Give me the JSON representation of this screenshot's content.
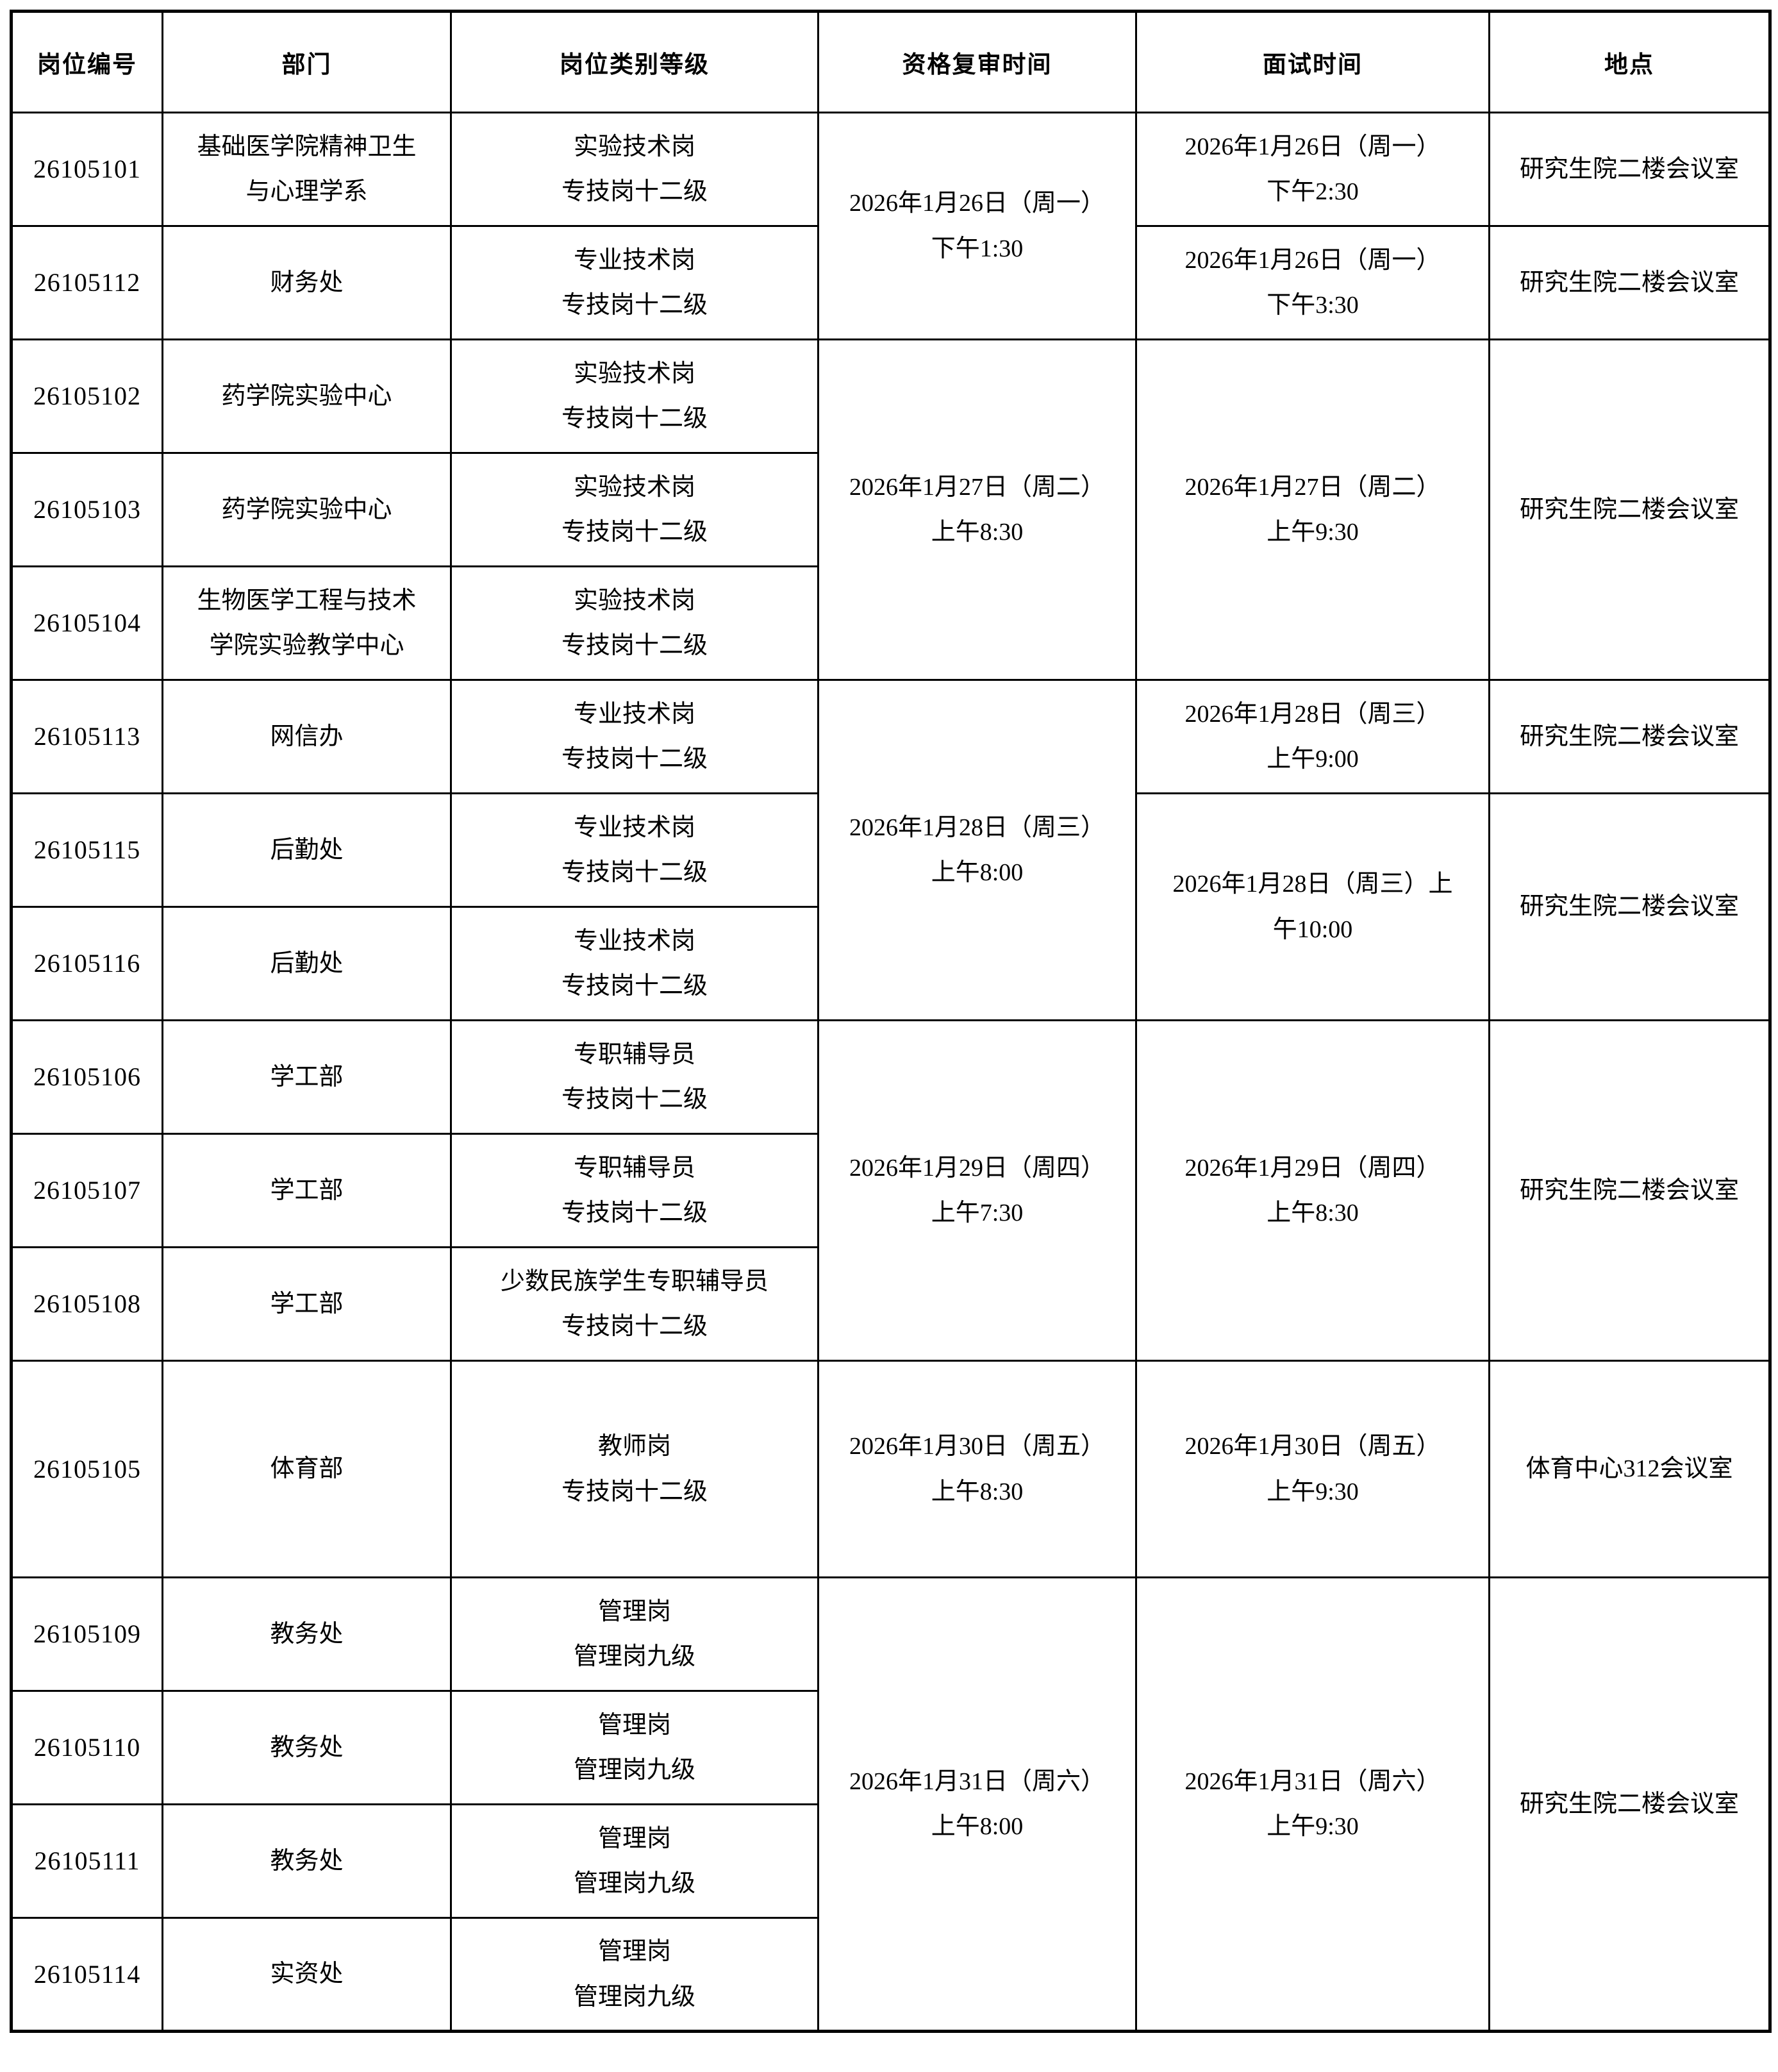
{
  "table": {
    "headers": [
      "岗位编号",
      "部门",
      "岗位类别等级",
      "资格复审时间",
      "面试时间",
      "地点"
    ],
    "rows": [
      {
        "id": "26105101",
        "dept": [
          "基础医学院精神卫生",
          "与心理学系"
        ],
        "cat": [
          "实验技术岗",
          "专技岗十二级"
        ],
        "review": [
          "2026年1月26日（周一）",
          "下午1:30"
        ],
        "interview": [
          "2026年1月26日（周一）",
          "下午2:30"
        ],
        "loc": "研究生院二楼会议室"
      },
      {
        "id": "26105112",
        "dept": [
          "财务处"
        ],
        "cat": [
          "专业技术岗",
          "专技岗十二级"
        ],
        "interview": [
          "2026年1月26日（周一）",
          "下午3:30"
        ],
        "loc": "研究生院二楼会议室"
      },
      {
        "id": "26105102",
        "dept": [
          "药学院实验中心"
        ],
        "cat": [
          "实验技术岗",
          "专技岗十二级"
        ],
        "review": [
          "2026年1月27日（周二）",
          "上午8:30"
        ],
        "interview": [
          "2026年1月27日（周二）",
          "上午9:30"
        ],
        "loc": "研究生院二楼会议室"
      },
      {
        "id": "26105103",
        "dept": [
          "药学院实验中心"
        ],
        "cat": [
          "实验技术岗",
          "专技岗十二级"
        ]
      },
      {
        "id": "26105104",
        "dept": [
          "生物医学工程与技术",
          "学院实验教学中心"
        ],
        "cat": [
          "实验技术岗",
          "专技岗十二级"
        ]
      },
      {
        "id": "26105113",
        "dept": [
          "网信办"
        ],
        "cat": [
          "专业技术岗",
          "专技岗十二级"
        ],
        "review": [
          "2026年1月28日（周三）",
          "上午8:00"
        ],
        "interview": [
          "2026年1月28日（周三）",
          "上午9:00"
        ],
        "loc": "研究生院二楼会议室"
      },
      {
        "id": "26105115",
        "dept": [
          "后勤处"
        ],
        "cat": [
          "专业技术岗",
          "专技岗十二级"
        ],
        "interview": [
          "2026年1月28日（周三）上",
          "午10:00"
        ],
        "loc": "研究生院二楼会议室"
      },
      {
        "id": "26105116",
        "dept": [
          "后勤处"
        ],
        "cat": [
          "专业技术岗",
          "专技岗十二级"
        ]
      },
      {
        "id": "26105106",
        "dept": [
          "学工部"
        ],
        "cat": [
          "专职辅导员",
          "专技岗十二级"
        ],
        "review": [
          "2026年1月29日（周四）",
          "上午7:30"
        ],
        "interview": [
          "2026年1月29日（周四）",
          "上午8:30"
        ],
        "loc": "研究生院二楼会议室"
      },
      {
        "id": "26105107",
        "dept": [
          "学工部"
        ],
        "cat": [
          "专职辅导员",
          "专技岗十二级"
        ]
      },
      {
        "id": "26105108",
        "dept": [
          "学工部"
        ],
        "cat": [
          "少数民族学生专职辅导员",
          "专技岗十二级"
        ]
      },
      {
        "id": "26105105",
        "dept": [
          "体育部"
        ],
        "cat": [
          "教师岗",
          "专技岗十二级"
        ],
        "review": [
          "2026年1月30日（周五）",
          "上午8:30"
        ],
        "interview": [
          "2026年1月30日（周五）",
          "上午9:30"
        ],
        "loc": "体育中心312会议室"
      },
      {
        "id": "26105109",
        "dept": [
          "教务处"
        ],
        "cat": [
          "管理岗",
          "管理岗九级"
        ],
        "review": [
          "2026年1月31日（周六）",
          "上午8:00"
        ],
        "interview": [
          "2026年1月31日（周六）",
          "上午9:30"
        ],
        "loc": "研究生院二楼会议室"
      },
      {
        "id": "26105110",
        "dept": [
          "教务处"
        ],
        "cat": [
          "管理岗",
          "管理岗九级"
        ]
      },
      {
        "id": "26105111",
        "dept": [
          "教务处"
        ],
        "cat": [
          "管理岗",
          "管理岗九级"
        ]
      },
      {
        "id": "26105114",
        "dept": [
          "实资处"
        ],
        "cat": [
          "管理岗",
          "管理岗九级"
        ]
      }
    ]
  }
}
